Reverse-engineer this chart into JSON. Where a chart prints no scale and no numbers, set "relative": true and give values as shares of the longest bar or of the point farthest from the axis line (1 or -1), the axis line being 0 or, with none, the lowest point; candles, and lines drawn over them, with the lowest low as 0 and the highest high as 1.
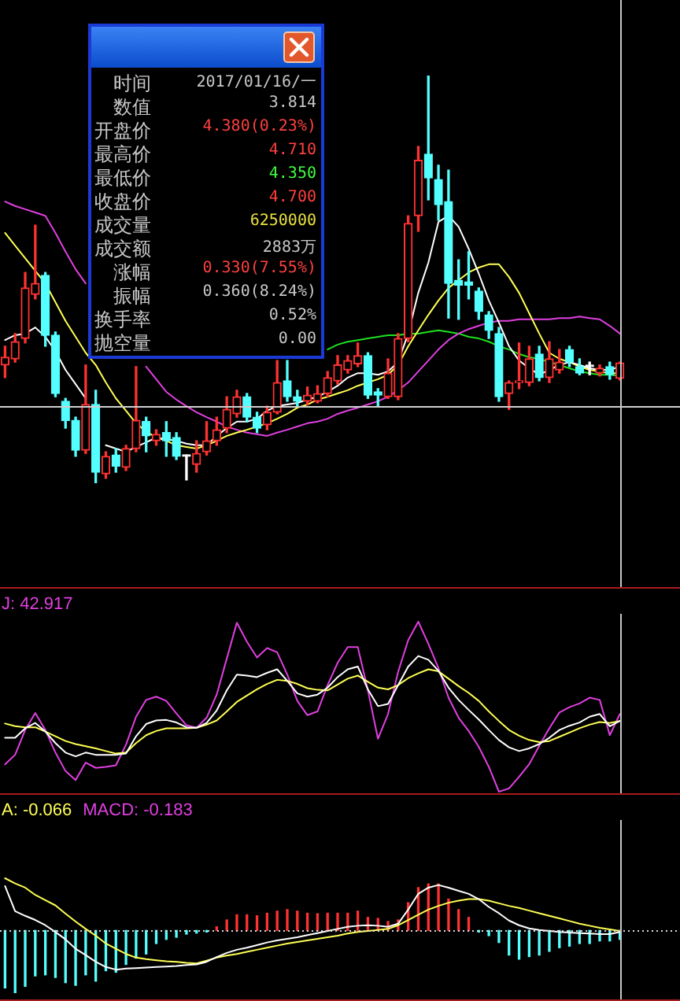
{
  "chart_data": [
    {
      "type": "candlestick",
      "relative": true,
      "categories": [
        null,
        null,
        null,
        null,
        null,
        null,
        null,
        null,
        null,
        null,
        null,
        null,
        null,
        null,
        null,
        null,
        null,
        null,
        null,
        null,
        null,
        null,
        null,
        null,
        null,
        null,
        null,
        null,
        null,
        null,
        null,
        null,
        null,
        null,
        null,
        null,
        null,
        null,
        null,
        null,
        null,
        null,
        null,
        null,
        null,
        null,
        null,
        null,
        null,
        null,
        null,
        null,
        null,
        null,
        null,
        null,
        null,
        null,
        null,
        null,
        null,
        null
      ],
      "ohlc": [
        [
          0.29,
          0.336,
          0.259,
          0.309
        ],
        [
          0.305,
          0.367,
          0.297,
          0.347
        ],
        [
          0.355,
          0.517,
          0.344,
          0.479
        ],
        [
          0.463,
          0.633,
          0.452,
          0.49
        ],
        [
          0.51,
          0.517,
          0.336,
          0.363
        ],
        [
          0.363,
          0.371,
          0.212,
          0.22
        ],
        [
          0.201,
          0.208,
          0.135,
          0.154
        ],
        [
          0.154,
          0.162,
          0.066,
          0.081
        ],
        [
          0.081,
          0.29,
          0.073,
          0.193
        ],
        [
          0.193,
          0.228,
          0,
          0.027
        ],
        [
          0.023,
          0.077,
          0.012,
          0.066
        ],
        [
          0.069,
          0.085,
          0.027,
          0.042
        ],
        [
          0.039,
          0.093,
          0.031,
          0.085
        ],
        [
          0.085,
          0.286,
          0.077,
          0.154
        ],
        [
          0.151,
          0.162,
          0.077,
          0.116
        ],
        [
          0.104,
          0.131,
          0.093,
          0.12
        ],
        [
          0.124,
          0.151,
          0.066,
          0.104
        ],
        [
          0.112,
          0.124,
          0.058,
          0.066
        ],
        [
          0.066,
          0.069,
          0.008,
          0.066
        ],
        [
          0.046,
          0.104,
          0.027,
          0.073
        ],
        [
          0.077,
          0.151,
          0.069,
          0.104
        ],
        [
          0.104,
          0.162,
          0.093,
          0.131
        ],
        [
          0.135,
          0.212,
          0.124,
          0.181
        ],
        [
          0.17,
          0.228,
          0.162,
          0.212
        ],
        [
          0.212,
          0.22,
          0.151,
          0.162
        ],
        [
          0.162,
          0.174,
          0.124,
          0.135
        ],
        [
          0.143,
          0.189,
          0.131,
          0.174
        ],
        [
          0.174,
          0.301,
          0.17,
          0.247
        ],
        [
          0.251,
          0.301,
          0.201,
          0.212
        ],
        [
          0.212,
          0.228,
          0.189,
          0.201
        ],
        [
          0.201,
          0.236,
          0.193,
          0.216
        ],
        [
          0.201,
          0.239,
          0.197,
          0.22
        ],
        [
          0.22,
          0.274,
          0.212,
          0.259
        ],
        [
          0.251,
          0.313,
          0.243,
          0.29
        ],
        [
          0.278,
          0.313,
          0.27,
          0.301
        ],
        [
          0.293,
          0.344,
          0.286,
          0.313
        ],
        [
          0.313,
          0.32,
          0.208,
          0.216
        ],
        [
          0.224,
          0.232,
          0.189,
          0.216
        ],
        [
          0.212,
          0.305,
          0.208,
          0.27
        ],
        [
          0.212,
          0.367,
          0.205,
          0.355
        ],
        [
          0.355,
          0.656,
          0.347,
          0.637
        ],
        [
          0.656,
          0.826,
          0.618,
          0.792
        ],
        [
          0.807,
          1,
          0.695,
          0.749
        ],
        [
          0.745,
          0.78,
          0.645,
          0.683
        ],
        [
          0.691,
          0.768,
          0.405,
          0.49
        ],
        [
          0.498,
          0.548,
          0.402,
          0.486
        ],
        [
          0.494,
          0.568,
          0.452,
          0.486
        ],
        [
          0.471,
          0.479,
          0.402,
          0.421
        ],
        [
          0.413,
          0.421,
          0.355,
          0.375
        ],
        [
          0.367,
          0.382,
          0.201,
          0.212
        ],
        [
          0.22,
          0.251,
          0.181,
          0.247
        ],
        [
          0.247,
          0.344,
          0.232,
          0.251
        ],
        [
          0.247,
          0.336,
          0.239,
          0.305
        ],
        [
          0.317,
          0.336,
          0.251,
          0.259
        ],
        [
          0.259,
          0.347,
          0.247,
          0.305
        ],
        [
          0.278,
          0.328,
          0.27,
          0.297
        ],
        [
          0.328,
          0.336,
          0.286,
          0.297
        ],
        [
          0.286,
          0.305,
          0.266,
          0.27
        ],
        [
          0.286,
          0.297,
          0.266,
          0.286
        ],
        [
          0.27,
          0.29,
          0.263,
          0.282
        ],
        [
          0.286,
          0.297,
          0.255,
          0.266
        ],
        [
          0.257,
          0.297,
          0.253,
          0.295
        ]
      ],
      "colors": [
        "#ff3232",
        "#ff3232",
        "#ff3232",
        "#ff3232",
        "#54ffff",
        "#54ffff",
        "#54ffff",
        "#54ffff",
        "#ff3232",
        "#54ffff",
        "#ff3232",
        "#54ffff",
        "#ff3232",
        "#ff3232",
        "#54ffff",
        "#ff3232",
        "#54ffff",
        "#54ffff",
        "#ffffff",
        "#ff3232",
        "#ff3232",
        "#ff3232",
        "#ff3232",
        "#ff3232",
        "#54ffff",
        "#54ffff",
        "#ff3232",
        "#ff3232",
        "#54ffff",
        "#54ffff",
        "#ff3232",
        "#ff3232",
        "#ff3232",
        "#ff3232",
        "#ff3232",
        "#ff3232",
        "#54ffff",
        "#54ffff",
        "#ff3232",
        "#ff3232",
        "#ff3232",
        "#ff3232",
        "#54ffff",
        "#54ffff",
        "#54ffff",
        "#54ffff",
        "#54ffff",
        "#54ffff",
        "#54ffff",
        "#54ffff",
        "#ff3232",
        "#ff3232",
        "#ff3232",
        "#54ffff",
        "#ff3232",
        "#ff3232",
        "#54ffff",
        "#54ffff",
        "#ffffff",
        "#ff3232",
        "#54ffff",
        "#ff3232"
      ],
      "series": [
        {
          "type": "line",
          "color": "#ffffff",
          "values": [
            0.351,
            0.363,
            0.367,
            0.382,
            0.359,
            0.324,
            0.278,
            0.243,
            0.208,
            null,
            0.093,
            0.085,
            0.077,
            0.089,
            0.1,
            0.112,
            0.108,
            0.104,
            0.097,
            0.093,
            0.093,
            0.116,
            0.135,
            0.151,
            0.151,
            0.158,
            0.178,
            0.189,
            0.193,
            0.197,
            0.205,
            0.212,
            0.224,
            0.239,
            0.259,
            0.27,
            0.27,
            0.266,
            0.274,
            0.297,
            0.367,
            0.467,
            0.541,
            0.641,
            0.656,
            0.629,
            0.575,
            0.514,
            0.448,
            0.394,
            0.336,
            0.301,
            0.282,
            0.266,
            0.278,
            0.29,
            0.297,
            0.29,
            0.282,
            0.278,
            0.278,
            0.286
          ]
        },
        {
          "type": "line",
          "color": "#ffff54",
          "values": [
            0.614,
            0.583,
            0.552,
            0.521,
            0.49,
            0.444,
            0.398,
            0.359,
            0.32,
            0.29,
            0.247,
            0.208,
            0.178,
            0.147,
            0.127,
            0.112,
            0.104,
            0.093,
            0.089,
            0.085,
            0.093,
            0.104,
            0.116,
            0.124,
            0.131,
            0.139,
            0.147,
            0.158,
            0.17,
            0.185,
            0.193,
            0.205,
            0.212,
            0.22,
            0.228,
            0.239,
            0.247,
            0.255,
            0.266,
            0.29,
            0.336,
            0.375,
            0.413,
            0.448,
            0.479,
            0.498,
            0.517,
            0.529,
            0.537,
            0.537,
            0.506,
            0.467,
            0.417,
            0.367,
            0.32,
            0.305,
            0.297,
            0.286,
            0.278,
            0.274,
            0.27,
            0.27
          ]
        },
        {
          "type": "line",
          "color": "#e040e0",
          "values": [
            0.691,
            0.68,
            0.672,
            0.664,
            0.656,
            0.614,
            0.568,
            0.525,
            0.49,
            null,
            null,
            null,
            null,
            null,
            0.286,
            0.255,
            0.224,
            0.205,
            0.189,
            0.174,
            0.162,
            0.151,
            0.139,
            0.131,
            0.124,
            0.12,
            0.116,
            0.124,
            0.131,
            0.139,
            0.147,
            0.151,
            0.158,
            0.17,
            0.178,
            0.185,
            0.193,
            0.201,
            0.212,
            0.228,
            0.247,
            0.274,
            0.301,
            0.328,
            0.351,
            0.367,
            0.378,
            0.386,
            0.394,
            0.398,
            0.398,
            0.402,
            0.402,
            0.402,
            0.402,
            0.405,
            0.405,
            0.409,
            0.405,
            0.402,
            0.386,
            0.367
          ]
        },
        {
          "type": "line",
          "color": "#20e020",
          "values": [
            null,
            null,
            null,
            null,
            null,
            null,
            null,
            null,
            null,
            null,
            null,
            null,
            null,
            null,
            null,
            null,
            null,
            null,
            null,
            null,
            null,
            null,
            null,
            null,
            null,
            null,
            null,
            null,
            null,
            null,
            null,
            null,
            0.328,
            0.34,
            0.347,
            0.351,
            0.355,
            0.359,
            0.363,
            0.363,
            0.367,
            0.367,
            0.371,
            0.375,
            0.371,
            0.367,
            0.359,
            0.355,
            0.347,
            0.336,
            0.328,
            0.317,
            0.309,
            0.305,
            0.297,
            0.29,
            0.282,
            0.274,
            0.27,
            0.266,
            0.266,
            0.263
          ]
        }
      ],
      "ref_lines": [
        {
          "axis": "y",
          "value": 0.189,
          "color": "#d0d0d0"
        }
      ],
      "tick_labels": false
    },
    {
      "type": "other",
      "categories": [
        "时间",
        "数值",
        "开盘价",
        "最高价",
        "最低价",
        "收盘价",
        "成交量",
        "成交额",
        "涨幅",
        "振幅",
        "换手率",
        "抛空量"
      ],
      "value_labels": [
        "2017/01/16/一",
        "3.814",
        "4.380(0.23%)",
        "4.710",
        "4.350",
        "4.700",
        "6250000",
        "2883万",
        "0.330(7.55%)",
        "0.360(8.24%)",
        "0.52%",
        "0.00"
      ]
    },
    {
      "type": "line",
      "relative": true,
      "categories": [
        null,
        null,
        null,
        null,
        null,
        null,
        null,
        null,
        null,
        null,
        null,
        null,
        null,
        null,
        null,
        null,
        null,
        null,
        null,
        null,
        null,
        null,
        null,
        null,
        null,
        null,
        null,
        null,
        null,
        null,
        null,
        null,
        null,
        null,
        null,
        null,
        null,
        null,
        null,
        null,
        null,
        null,
        null,
        null,
        null,
        null,
        null,
        null,
        null,
        null,
        null,
        null,
        null,
        null,
        null,
        null,
        null,
        null,
        null,
        null,
        null,
        null
      ],
      "series": [
        {
          "color": "#ffffff",
          "values": [
            0.317,
            0.317,
            0.373,
            0.404,
            0.354,
            0.286,
            0.23,
            0.208,
            0.23,
            0.217,
            0.217,
            0.217,
            0.224,
            0.326,
            0.398,
            0.419,
            0.422,
            0.407,
            0.379,
            0.376,
            0.404,
            0.478,
            0.596,
            0.689,
            0.683,
            0.674,
            0.699,
            0.72,
            0.652,
            0.578,
            0.559,
            0.571,
            0.612,
            0.674,
            0.72,
            0.736,
            0.602,
            0.503,
            0.516,
            0.627,
            0.736,
            0.798,
            0.776,
            0.711,
            0.612,
            0.54,
            0.481,
            0.425,
            0.363,
            0.304,
            0.261,
            0.239,
            0.255,
            0.28,
            0.317,
            0.363,
            0.388,
            0.407,
            0.441,
            0.457,
            0.385,
            0.416
          ]
        },
        {
          "color": "#ffff54",
          "values": [
            0.401,
            0.385,
            0.379,
            0.379,
            0.354,
            0.326,
            0.298,
            0.28,
            0.267,
            0.255,
            0.239,
            0.224,
            0.23,
            0.286,
            0.332,
            0.357,
            0.373,
            0.373,
            0.373,
            0.376,
            0.394,
            0.419,
            0.472,
            0.528,
            0.565,
            0.602,
            0.634,
            0.658,
            0.652,
            0.634,
            0.609,
            0.599,
            0.596,
            0.63,
            0.665,
            0.683,
            0.646,
            0.612,
            0.602,
            0.627,
            0.668,
            0.696,
            0.72,
            0.708,
            0.665,
            0.621,
            0.581,
            0.534,
            0.472,
            0.416,
            0.363,
            0.329,
            0.304,
            0.292,
            0.298,
            0.323,
            0.348,
            0.373,
            0.394,
            0.41,
            0.404,
            0.416
          ]
        },
        {
          "name": "J: 42.917",
          "color": "#e040e0",
          "values": [
            0.161,
            0.217,
            0.363,
            0.463,
            0.363,
            0.23,
            0.121,
            0.068,
            0.171,
            0.14,
            0.146,
            0.155,
            0.276,
            0.441,
            0.54,
            0.559,
            0.534,
            0.46,
            0.391,
            0.376,
            0.435,
            0.571,
            0.783,
            0.994,
            0.882,
            0.789,
            0.845,
            0.82,
            0.689,
            0.534,
            0.45,
            0.472,
            0.627,
            0.758,
            0.851,
            0.851,
            0.596,
            0.311,
            0.457,
            0.705,
            0.891,
            1,
            0.87,
            0.727,
            0.553,
            0.435,
            0.357,
            0.264,
            0.146,
            0,
            0.019,
            0.087,
            0.161,
            0.27,
            0.373,
            0.466,
            0.497,
            0.519,
            0.553,
            0.54,
            0.332,
            0.457
          ]
        }
      ],
      "legend": "top left",
      "tick_labels": false
    },
    {
      "type": "bar",
      "relative": true,
      "categories": [
        null,
        null,
        null,
        null,
        null,
        null,
        null,
        null,
        null,
        null,
        null,
        null,
        null,
        null,
        null,
        null,
        null,
        null,
        null,
        null,
        null,
        null,
        null,
        null,
        null,
        null,
        null,
        null,
        null,
        null,
        null,
        null,
        null,
        null,
        null,
        null,
        null,
        null,
        null,
        null,
        null,
        null,
        null,
        null,
        null,
        null,
        null,
        null,
        null,
        null,
        null,
        null,
        null,
        null,
        null,
        null,
        null,
        null,
        null,
        null,
        null,
        null
      ],
      "series": [
        {
          "type": "line",
          "color": "#ffffff",
          "values": [
            0.708,
            0.308,
            0.233,
            0.167,
            0.083,
            -0.025,
            -0.142,
            -0.292,
            -0.392,
            -0.5,
            -0.583,
            -0.625,
            -0.608,
            -0.6,
            -0.592,
            -0.583,
            -0.575,
            -0.567,
            -0.55,
            -0.542,
            -0.5,
            -0.425,
            -0.358,
            -0.308,
            -0.275,
            -0.233,
            -0.192,
            -0.158,
            -0.133,
            -0.108,
            -0.075,
            -0.042,
            -0.008,
            0.025,
            0.058,
            0.075,
            0.083,
            0.075,
            0.058,
            0.108,
            0.333,
            0.583,
            0.683,
            0.725,
            0.683,
            0.633,
            0.583,
            0.5,
            0.375,
            0.275,
            0.158,
            0.083,
            0.033,
            0.008,
            -0.008,
            -0.025,
            -0.033,
            -0.042,
            -0.05,
            -0.058,
            -0.058,
            -0.025
          ]
        },
        {
          "type": "line",
          "name": "A: -0.066",
          "color": "#ffff54",
          "values": [
            0.833,
            0.75,
            0.683,
            0.567,
            0.483,
            0.4,
            0.267,
            0.142,
            0.025,
            -0.083,
            -0.208,
            -0.292,
            -0.375,
            -0.433,
            -0.458,
            -0.475,
            -0.492,
            -0.5,
            -0.517,
            -0.525,
            -0.483,
            -0.433,
            -0.4,
            -0.375,
            -0.342,
            -0.308,
            -0.275,
            -0.242,
            -0.208,
            -0.183,
            -0.158,
            -0.133,
            -0.108,
            -0.083,
            -0.05,
            -0.025,
            -0.008,
            0.008,
            0.025,
            0.083,
            0.167,
            0.25,
            0.333,
            0.392,
            0.442,
            0.475,
            0.5,
            0.5,
            0.475,
            0.433,
            0.392,
            0.358,
            0.317,
            0.275,
            0.233,
            0.192,
            0.15,
            0.108,
            0.075,
            0.042,
            0.017,
            -0.008
          ]
        },
        {
          "type": "bar",
          "colors": [
            "#54ffff",
            "#54ffff",
            "#54ffff",
            "#54ffff",
            "#54ffff",
            "#54ffff",
            "#54ffff",
            "#54ffff",
            "#54ffff",
            "#54ffff",
            "#54ffff",
            "#54ffff",
            "#54ffff",
            "#54ffff",
            "#54ffff",
            "#54ffff",
            "#54ffff",
            "#54ffff",
            "#54ffff",
            "#54ffff",
            "#54ffff",
            "#ff3232",
            "#ff3232",
            "#ff3232",
            "#ff3232",
            "#ff3232",
            "#ff3232",
            "#ff3232",
            "#ff3232",
            "#ff3232",
            "#ff3232",
            "#ff3232",
            "#ff3232",
            "#ff3232",
            "#ff3232",
            "#ff3232",
            "#ff3232",
            "#ff3232",
            "#ff3232",
            "#ff3232",
            "#ff3232",
            "#ff3232",
            "#ff3232",
            "#ff3232",
            "#ff3232",
            "#ff3232",
            "#ff3232",
            "#54ffff",
            "#54ffff",
            "#54ffff",
            "#54ffff",
            "#54ffff",
            "#54ffff",
            "#54ffff",
            "#54ffff",
            "#54ffff",
            "#54ffff",
            "#54ffff",
            "#54ffff",
            "#54ffff",
            "#54ffff",
            "#54ffff"
          ],
          "values": [
            -0.917,
            -1,
            -0.892,
            -0.725,
            -0.708,
            -0.75,
            -0.833,
            -0.875,
            -0.708,
            -0.808,
            -0.642,
            -0.667,
            -0.542,
            -0.442,
            -0.375,
            -0.208,
            -0.142,
            -0.108,
            -0.058,
            -0.042,
            -0.025,
            0.058,
            0.167,
            0.25,
            0.25,
            0.233,
            0.275,
            0.308,
            0.333,
            0.308,
            0.275,
            0.267,
            0.275,
            0.275,
            0.275,
            0.308,
            0.208,
            0.192,
            0.142,
            0.167,
            0.442,
            0.683,
            0.742,
            0.742,
            0.5,
            0.333,
            0.208,
            -0.025,
            -0.083,
            -0.192,
            -0.392,
            -0.458,
            -0.417,
            -0.392,
            -0.333,
            -0.275,
            -0.25,
            -0.208,
            -0.208,
            -0.167,
            -0.167,
            -0.142
          ]
        }
      ],
      "ref_lines": [
        {
          "axis": "y",
          "value": 0,
          "color": "#d8d8d8",
          "line_style": "dotted"
        }
      ],
      "annotations": [
        "MACD: -0.183"
      ],
      "legend": "top left",
      "tick_labels": false
    }
  ]
}
